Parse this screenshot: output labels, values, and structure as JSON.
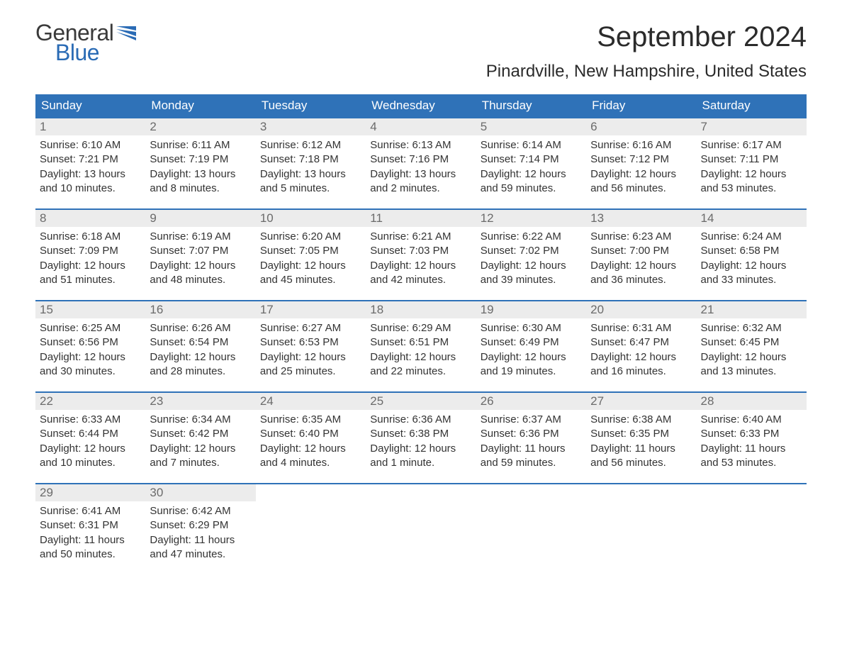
{
  "logo": {
    "text1": "General",
    "text2": "Blue",
    "flag_color": "#2a6bb5"
  },
  "header": {
    "month_title": "September 2024",
    "location": "Pinardville, New Hampshire, United States"
  },
  "colors": {
    "header_bg": "#2f72b8",
    "header_text": "#ffffff",
    "daynum_bg": "#ececec",
    "daynum_text": "#6b6b6b",
    "border": "#2f72b8",
    "body_text": "#333333",
    "page_bg": "#ffffff"
  },
  "weekdays": [
    "Sunday",
    "Monday",
    "Tuesday",
    "Wednesday",
    "Thursday",
    "Friday",
    "Saturday"
  ],
  "labels": {
    "sunrise": "Sunrise:",
    "sunset": "Sunset:",
    "daylight": "Daylight:"
  },
  "weeks": [
    [
      {
        "n": "1",
        "sunrise": "6:10 AM",
        "sunset": "7:21 PM",
        "daylight": "13 hours and 10 minutes."
      },
      {
        "n": "2",
        "sunrise": "6:11 AM",
        "sunset": "7:19 PM",
        "daylight": "13 hours and 8 minutes."
      },
      {
        "n": "3",
        "sunrise": "6:12 AM",
        "sunset": "7:18 PM",
        "daylight": "13 hours and 5 minutes."
      },
      {
        "n": "4",
        "sunrise": "6:13 AM",
        "sunset": "7:16 PM",
        "daylight": "13 hours and 2 minutes."
      },
      {
        "n": "5",
        "sunrise": "6:14 AM",
        "sunset": "7:14 PM",
        "daylight": "12 hours and 59 minutes."
      },
      {
        "n": "6",
        "sunrise": "6:16 AM",
        "sunset": "7:12 PM",
        "daylight": "12 hours and 56 minutes."
      },
      {
        "n": "7",
        "sunrise": "6:17 AM",
        "sunset": "7:11 PM",
        "daylight": "12 hours and 53 minutes."
      }
    ],
    [
      {
        "n": "8",
        "sunrise": "6:18 AM",
        "sunset": "7:09 PM",
        "daylight": "12 hours and 51 minutes."
      },
      {
        "n": "9",
        "sunrise": "6:19 AM",
        "sunset": "7:07 PM",
        "daylight": "12 hours and 48 minutes."
      },
      {
        "n": "10",
        "sunrise": "6:20 AM",
        "sunset": "7:05 PM",
        "daylight": "12 hours and 45 minutes."
      },
      {
        "n": "11",
        "sunrise": "6:21 AM",
        "sunset": "7:03 PM",
        "daylight": "12 hours and 42 minutes."
      },
      {
        "n": "12",
        "sunrise": "6:22 AM",
        "sunset": "7:02 PM",
        "daylight": "12 hours and 39 minutes."
      },
      {
        "n": "13",
        "sunrise": "6:23 AM",
        "sunset": "7:00 PM",
        "daylight": "12 hours and 36 minutes."
      },
      {
        "n": "14",
        "sunrise": "6:24 AM",
        "sunset": "6:58 PM",
        "daylight": "12 hours and 33 minutes."
      }
    ],
    [
      {
        "n": "15",
        "sunrise": "6:25 AM",
        "sunset": "6:56 PM",
        "daylight": "12 hours and 30 minutes."
      },
      {
        "n": "16",
        "sunrise": "6:26 AM",
        "sunset": "6:54 PM",
        "daylight": "12 hours and 28 minutes."
      },
      {
        "n": "17",
        "sunrise": "6:27 AM",
        "sunset": "6:53 PM",
        "daylight": "12 hours and 25 minutes."
      },
      {
        "n": "18",
        "sunrise": "6:29 AM",
        "sunset": "6:51 PM",
        "daylight": "12 hours and 22 minutes."
      },
      {
        "n": "19",
        "sunrise": "6:30 AM",
        "sunset": "6:49 PM",
        "daylight": "12 hours and 19 minutes."
      },
      {
        "n": "20",
        "sunrise": "6:31 AM",
        "sunset": "6:47 PM",
        "daylight": "12 hours and 16 minutes."
      },
      {
        "n": "21",
        "sunrise": "6:32 AM",
        "sunset": "6:45 PM",
        "daylight": "12 hours and 13 minutes."
      }
    ],
    [
      {
        "n": "22",
        "sunrise": "6:33 AM",
        "sunset": "6:44 PM",
        "daylight": "12 hours and 10 minutes."
      },
      {
        "n": "23",
        "sunrise": "6:34 AM",
        "sunset": "6:42 PM",
        "daylight": "12 hours and 7 minutes."
      },
      {
        "n": "24",
        "sunrise": "6:35 AM",
        "sunset": "6:40 PM",
        "daylight": "12 hours and 4 minutes."
      },
      {
        "n": "25",
        "sunrise": "6:36 AM",
        "sunset": "6:38 PM",
        "daylight": "12 hours and 1 minute."
      },
      {
        "n": "26",
        "sunrise": "6:37 AM",
        "sunset": "6:36 PM",
        "daylight": "11 hours and 59 minutes."
      },
      {
        "n": "27",
        "sunrise": "6:38 AM",
        "sunset": "6:35 PM",
        "daylight": "11 hours and 56 minutes."
      },
      {
        "n": "28",
        "sunrise": "6:40 AM",
        "sunset": "6:33 PM",
        "daylight": "11 hours and 53 minutes."
      }
    ],
    [
      {
        "n": "29",
        "sunrise": "6:41 AM",
        "sunset": "6:31 PM",
        "daylight": "11 hours and 50 minutes."
      },
      {
        "n": "30",
        "sunrise": "6:42 AM",
        "sunset": "6:29 PM",
        "daylight": "11 hours and 47 minutes."
      },
      {
        "empty": true
      },
      {
        "empty": true
      },
      {
        "empty": true
      },
      {
        "empty": true
      },
      {
        "empty": true
      }
    ]
  ]
}
